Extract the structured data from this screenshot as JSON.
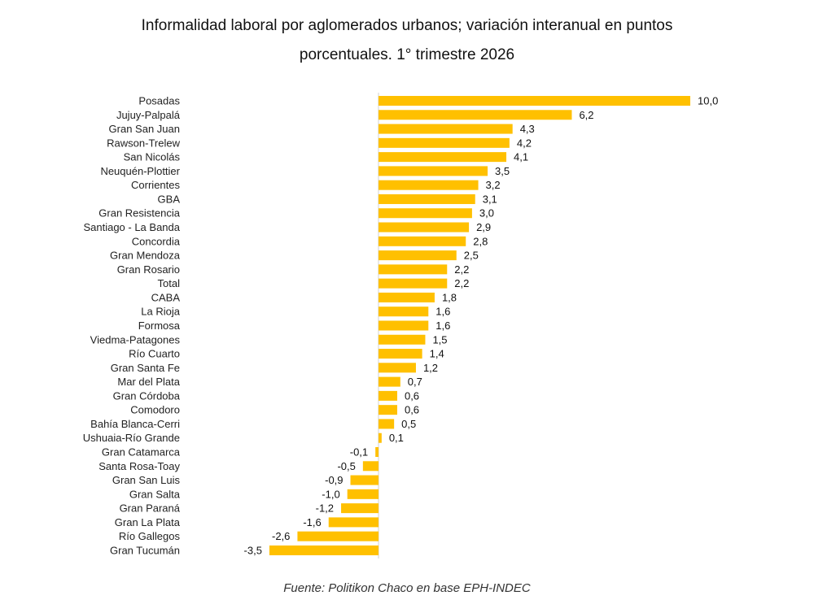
{
  "chart_data": {
    "type": "bar",
    "orientation": "horizontal",
    "title": "Informalidad laboral por aglomerados urbanos; variación interanual en puntos porcentuales. 1° trimestre 2026",
    "title_lines": [
      "Informalidad laboral por aglomerados urbanos; variación interanual en puntos",
      "porcentuales. 1° trimestre 2026"
    ],
    "source": "Fuente: Politikon Chaco en base EPH-INDEC",
    "bar_color": "#FFC000",
    "categories": [
      "Posadas",
      "Jujuy-Palpalá",
      "Gran San Juan",
      "Rawson-Trelew",
      "San Nicolás",
      "Neuquén-Plottier",
      "Corrientes",
      "GBA",
      "Gran Resistencia",
      "Santiago - La Banda",
      "Concordia",
      "Gran Mendoza",
      "Gran Rosario",
      "Total",
      "CABA",
      "La Rioja",
      "Formosa",
      "Viedma-Patagones",
      "Río Cuarto",
      "Gran Santa Fe",
      "Mar del Plata",
      "Gran Córdoba",
      "Comodoro",
      "Bahía Blanca-Cerri",
      "Ushuaia-Río Grande",
      "Gran Catamarca",
      "Santa Rosa-Toay",
      "Gran San Luis",
      "Gran Salta",
      "Gran Paraná",
      "Gran La Plata",
      "Río Gallegos",
      "Gran Tucumán"
    ],
    "values": [
      10.0,
      6.2,
      4.3,
      4.2,
      4.1,
      3.5,
      3.2,
      3.1,
      3.0,
      2.9,
      2.8,
      2.5,
      2.2,
      2.2,
      1.8,
      1.6,
      1.6,
      1.5,
      1.4,
      1.2,
      0.7,
      0.6,
      0.6,
      0.5,
      0.1,
      -0.1,
      -0.5,
      -0.9,
      -1.0,
      -1.2,
      -1.6,
      -2.6,
      -3.5
    ],
    "value_labels": [
      "10,0",
      "6,2",
      "4,3",
      "4,2",
      "4,1",
      "3,5",
      "3,2",
      "3,1",
      "3,0",
      "2,9",
      "2,8",
      "2,5",
      "2,2",
      "2,2",
      "1,8",
      "1,6",
      "1,6",
      "1,5",
      "1,4",
      "1,2",
      "0,7",
      "0,6",
      "0,6",
      "0,5",
      "0,1",
      "-0,1",
      "-0,5",
      "-0,9",
      "-1,0",
      "-1,2",
      "-1,6",
      "-2,6",
      "-3,5"
    ],
    "xlim": [
      -3.5,
      10.0
    ],
    "grid": false,
    "legend": false
  }
}
